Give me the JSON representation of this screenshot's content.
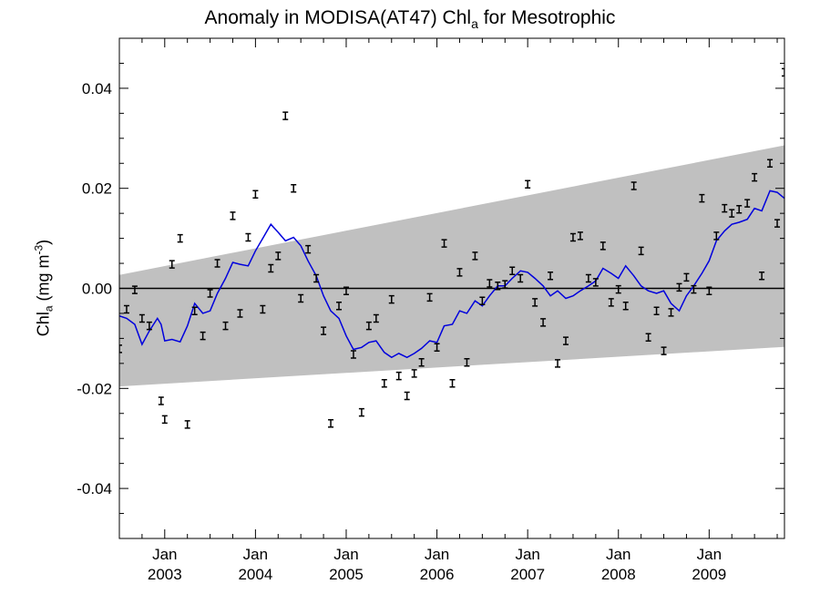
{
  "chart_data": {
    "type": "line",
    "title": {
      "prefix": "Anomaly in MODISA(AT47) Chl",
      "subscript": "a",
      "suffix": " for Mesotrophic"
    },
    "ylabel": {
      "main": "Chl",
      "subscript": "a",
      "units_open": " (mg m",
      "superscript": "-3",
      "units_close": ")"
    },
    "xlim": [
      2002.5,
      2009.83
    ],
    "ylim": [
      -0.05,
      0.05
    ],
    "y_ticks": [
      {
        "value": -0.04,
        "label": "-0.04"
      },
      {
        "value": -0.02,
        "label": "-0.02"
      },
      {
        "value": 0.0,
        "label": "0.00"
      },
      {
        "value": 0.02,
        "label": "0.02"
      },
      {
        "value": 0.04,
        "label": "0.04"
      }
    ],
    "y_minor_step": 0.005,
    "x_ticks": [
      {
        "value": 2003.0,
        "month": "Jan",
        "year": "2003"
      },
      {
        "value": 2004.0,
        "month": "Jan",
        "year": "2004"
      },
      {
        "value": 2005.0,
        "month": "Jan",
        "year": "2005"
      },
      {
        "value": 2006.0,
        "month": "Jan",
        "year": "2006"
      },
      {
        "value": 2007.0,
        "month": "Jan",
        "year": "2007"
      },
      {
        "value": 2008.0,
        "month": "Jan",
        "year": "2008"
      },
      {
        "value": 2009.0,
        "month": "Jan",
        "year": "2009"
      }
    ],
    "x_minor_step": 0.25,
    "zero_line": 0.0,
    "trend_band": {
      "color": "#c0c0c0",
      "upper": [
        [
          2002.5,
          0.0027
        ],
        [
          2009.83,
          0.0286
        ]
      ],
      "lower": [
        [
          2002.5,
          -0.0196
        ],
        [
          2009.83,
          -0.0117
        ]
      ]
    },
    "smoothed_series": {
      "color": "#0000dd",
      "points": [
        [
          2002.5,
          -0.0055
        ],
        [
          2002.58,
          -0.006
        ],
        [
          2002.67,
          -0.0072
        ],
        [
          2002.75,
          -0.0112
        ],
        [
          2002.83,
          -0.0085
        ],
        [
          2002.92,
          -0.006
        ],
        [
          2002.96,
          -0.0072
        ],
        [
          2003.0,
          -0.0105
        ],
        [
          2003.08,
          -0.0102
        ],
        [
          2003.17,
          -0.0107
        ],
        [
          2003.25,
          -0.0075
        ],
        [
          2003.33,
          -0.003
        ],
        [
          2003.42,
          -0.005
        ],
        [
          2003.5,
          -0.0045
        ],
        [
          2003.58,
          -0.001
        ],
        [
          2003.67,
          0.002
        ],
        [
          2003.75,
          0.0052
        ],
        [
          2003.83,
          0.0048
        ],
        [
          2003.92,
          0.0045
        ],
        [
          2004.0,
          0.0075
        ],
        [
          2004.08,
          0.01
        ],
        [
          2004.17,
          0.0128
        ],
        [
          2004.25,
          0.0112
        ],
        [
          2004.33,
          0.0095
        ],
        [
          2004.42,
          0.0102
        ],
        [
          2004.5,
          0.0085
        ],
        [
          2004.58,
          0.0055
        ],
        [
          2004.67,
          0.0025
        ],
        [
          2004.75,
          -0.0015
        ],
        [
          2004.83,
          -0.0045
        ],
        [
          2004.92,
          -0.006
        ],
        [
          2005.0,
          -0.0095
        ],
        [
          2005.08,
          -0.0122
        ],
        [
          2005.17,
          -0.0118
        ],
        [
          2005.25,
          -0.0108
        ],
        [
          2005.33,
          -0.0105
        ],
        [
          2005.42,
          -0.0128
        ],
        [
          2005.5,
          -0.0138
        ],
        [
          2005.58,
          -0.013
        ],
        [
          2005.67,
          -0.0138
        ],
        [
          2005.75,
          -0.013
        ],
        [
          2005.83,
          -0.012
        ],
        [
          2005.92,
          -0.0105
        ],
        [
          2006.0,
          -0.0108
        ],
        [
          2006.08,
          -0.0075
        ],
        [
          2006.17,
          -0.0072
        ],
        [
          2006.25,
          -0.0045
        ],
        [
          2006.33,
          -0.005
        ],
        [
          2006.42,
          -0.0025
        ],
        [
          2006.5,
          -0.0035
        ],
        [
          2006.58,
          -0.0015
        ],
        [
          2006.67,
          0.0005
        ],
        [
          2006.75,
          0.0005
        ],
        [
          2006.83,
          0.002
        ],
        [
          2006.92,
          0.0035
        ],
        [
          2007.0,
          0.0032
        ],
        [
          2007.08,
          0.002
        ],
        [
          2007.17,
          0.0005
        ],
        [
          2007.25,
          -0.0015
        ],
        [
          2007.33,
          -0.0005
        ],
        [
          2007.42,
          -0.002
        ],
        [
          2007.5,
          -0.0015
        ],
        [
          2007.58,
          -0.0005
        ],
        [
          2007.67,
          0.0005
        ],
        [
          2007.75,
          0.0015
        ],
        [
          2007.83,
          0.004
        ],
        [
          2007.92,
          0.003
        ],
        [
          2008.0,
          0.002
        ],
        [
          2008.08,
          0.0045
        ],
        [
          2008.17,
          0.0025
        ],
        [
          2008.25,
          0.0005
        ],
        [
          2008.33,
          -0.0005
        ],
        [
          2008.42,
          -0.001
        ],
        [
          2008.5,
          -0.0005
        ],
        [
          2008.58,
          -0.003
        ],
        [
          2008.67,
          -0.0045
        ],
        [
          2008.75,
          -0.0015
        ],
        [
          2008.83,
          0.0005
        ],
        [
          2008.92,
          0.003
        ],
        [
          2009.0,
          0.0055
        ],
        [
          2009.08,
          0.0095
        ],
        [
          2009.17,
          0.0115
        ],
        [
          2009.25,
          0.0128
        ],
        [
          2009.33,
          0.0132
        ],
        [
          2009.42,
          0.0138
        ],
        [
          2009.5,
          0.016
        ],
        [
          2009.58,
          0.0155
        ],
        [
          2009.67,
          0.0195
        ],
        [
          2009.75,
          0.0192
        ],
        [
          2009.83,
          0.018
        ]
      ]
    },
    "monthly_anomalies": {
      "color": "#000000",
      "points": [
        [
          2002.5,
          -0.0121
        ],
        [
          2002.58,
          -0.0042
        ],
        [
          2002.67,
          -0.0003
        ],
        [
          2002.75,
          -0.006
        ],
        [
          2002.83,
          -0.0075
        ],
        [
          2002.96,
          -0.0225
        ],
        [
          2003.0,
          -0.0262
        ],
        [
          2003.08,
          0.0048
        ],
        [
          2003.17,
          0.01
        ],
        [
          2003.25,
          -0.0272
        ],
        [
          2003.33,
          -0.0045
        ],
        [
          2003.42,
          -0.0095
        ],
        [
          2003.5,
          -0.001
        ],
        [
          2003.58,
          0.005
        ],
        [
          2003.67,
          -0.0075
        ],
        [
          2003.75,
          0.0145
        ],
        [
          2003.83,
          -0.005
        ],
        [
          2003.92,
          0.0102
        ],
        [
          2004.0,
          0.0188
        ],
        [
          2004.08,
          -0.0042
        ],
        [
          2004.17,
          0.004
        ],
        [
          2004.25,
          0.0065
        ],
        [
          2004.33,
          0.0345
        ],
        [
          2004.42,
          0.02
        ],
        [
          2004.5,
          -0.002
        ],
        [
          2004.58,
          0.0078
        ],
        [
          2004.67,
          0.002
        ],
        [
          2004.75,
          -0.0085
        ],
        [
          2004.83,
          -0.027
        ],
        [
          2004.92,
          -0.0035
        ],
        [
          2005.0,
          -0.0005
        ],
        [
          2005.08,
          -0.0132
        ],
        [
          2005.17,
          -0.0248
        ],
        [
          2005.25,
          -0.0075
        ],
        [
          2005.33,
          -0.006
        ],
        [
          2005.42,
          -0.019
        ],
        [
          2005.5,
          -0.0022
        ],
        [
          2005.58,
          -0.0175
        ],
        [
          2005.67,
          -0.0215
        ],
        [
          2005.75,
          -0.017
        ],
        [
          2005.83,
          -0.0148
        ],
        [
          2005.92,
          -0.0018
        ],
        [
          2006.0,
          -0.0118
        ],
        [
          2006.08,
          0.009
        ],
        [
          2006.17,
          -0.019
        ],
        [
          2006.25,
          0.0032
        ],
        [
          2006.33,
          -0.0148
        ],
        [
          2006.42,
          0.0065
        ],
        [
          2006.5,
          -0.0025
        ],
        [
          2006.58,
          0.001
        ],
        [
          2006.67,
          0.0005
        ],
        [
          2006.75,
          0.0008
        ],
        [
          2006.83,
          0.0035
        ],
        [
          2006.92,
          0.002
        ],
        [
          2007.0,
          0.0208
        ],
        [
          2007.08,
          -0.0028
        ],
        [
          2007.17,
          -0.0068
        ],
        [
          2007.25,
          0.0025
        ],
        [
          2007.33,
          -0.015
        ],
        [
          2007.42,
          -0.0105
        ],
        [
          2007.5,
          0.0102
        ],
        [
          2007.58,
          0.0105
        ],
        [
          2007.67,
          0.002
        ],
        [
          2007.75,
          0.0012
        ],
        [
          2007.83,
          0.0085
        ],
        [
          2007.92,
          -0.0028
        ],
        [
          2008.0,
          -0.0002
        ],
        [
          2008.08,
          -0.0035
        ],
        [
          2008.17,
          0.0205
        ],
        [
          2008.25,
          0.0075
        ],
        [
          2008.33,
          -0.0098
        ],
        [
          2008.42,
          -0.0045
        ],
        [
          2008.5,
          -0.0125
        ],
        [
          2008.58,
          -0.0048
        ],
        [
          2008.67,
          0.0002
        ],
        [
          2008.75,
          0.0022
        ],
        [
          2008.83,
          -0.0002
        ],
        [
          2008.92,
          0.018
        ],
        [
          2009.0,
          -0.0005
        ],
        [
          2009.08,
          0.0105
        ],
        [
          2009.17,
          0.016
        ],
        [
          2009.25,
          0.015
        ],
        [
          2009.33,
          0.0158
        ],
        [
          2009.42,
          0.017
        ],
        [
          2009.5,
          0.0222
        ],
        [
          2009.58,
          0.0025
        ],
        [
          2009.67,
          0.025
        ],
        [
          2009.75,
          0.013
        ],
        [
          2009.83,
          0.0432
        ]
      ]
    }
  }
}
